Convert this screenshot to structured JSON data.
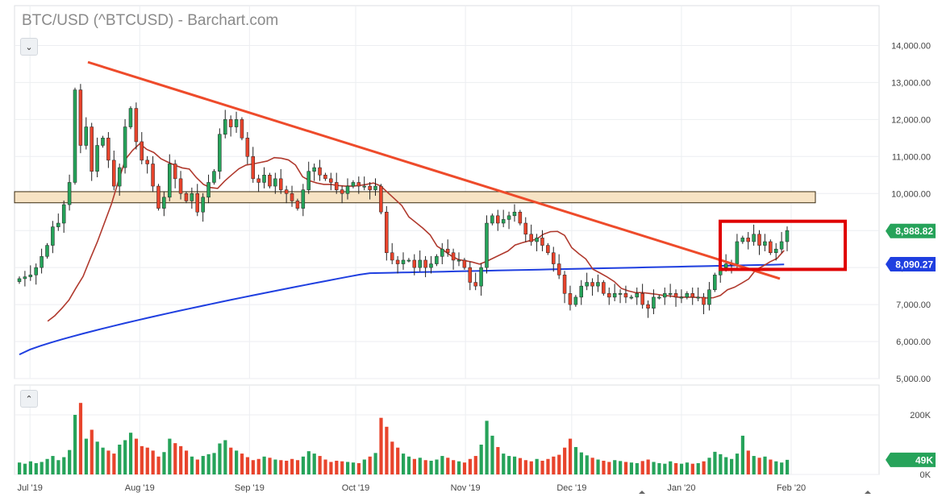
{
  "title": "BTC/USD (^BTCUSD) - Barchart.com",
  "controls": {
    "price_toggle_icon": "chevron-down-icon",
    "volume_toggle_icon": "chevron-up-icon"
  },
  "colors": {
    "up": "#26a35a",
    "down": "#e8442c",
    "ma_fast": "#b03a2e",
    "ma_slow": "#1f3fe0",
    "trendline": "#ee4b2b",
    "box": "#e00000",
    "zone_fill": "#f7e3c4",
    "tag_price": "#26a35a",
    "tag_slow": "#1f3fe0",
    "tag_vol": "#26a35a"
  },
  "chart_data": {
    "type": "candlestick",
    "price_axis": {
      "ticks": [
        "5,000.00",
        "6,000.00",
        "7,000.00",
        "8,000.00",
        "9,000.00",
        "10,000.00",
        "11,000.00",
        "12,000.00",
        "13,000.00",
        "14,000.00"
      ],
      "range": [
        5000,
        14400
      ]
    },
    "volume_axis": {
      "ticks": [
        "0K",
        "200K"
      ],
      "range": [
        0,
        300000
      ]
    },
    "x_axis": {
      "labels": [
        "Jul '19",
        "Aug '19",
        "Sep '19",
        "Oct '19",
        "Nov '19",
        "Dec '19",
        "Jan '20",
        "Feb '20"
      ],
      "label_index": [
        3,
        34,
        65,
        95,
        126,
        156,
        187,
        218
      ]
    },
    "last_price": "8,988.82",
    "last_ma_slow": "8,090.27",
    "last_volume": "49K",
    "closes": [
      7700,
      7750,
      7800,
      8000,
      8300,
      8600,
      9100,
      9200,
      9700,
      10300,
      12800,
      11300,
      11800,
      10600,
      11300,
      11500,
      10900,
      10200,
      10700,
      11800,
      12300,
      11400,
      10900,
      10800,
      10200,
      9600,
      9900,
      10800,
      10400,
      10000,
      9800,
      10000,
      9500,
      9900,
      10300,
      10600,
      11600,
      12000,
      11800,
      12000,
      11500,
      11000,
      10400,
      10300,
      10500,
      10200,
      10400,
      10100,
      10000,
      9800,
      9600,
      10100,
      10600,
      10700,
      10500,
      10400,
      10300,
      10100,
      10000,
      10200,
      10300,
      10200,
      10200,
      10100,
      10200,
      9500,
      8400,
      8200,
      8100,
      8200,
      8200,
      8000,
      8200,
      8000,
      8100,
      8300,
      8500,
      8400,
      8200,
      8200,
      8000,
      7600,
      7500,
      8000,
      9200,
      9400,
      9200,
      9300,
      9400,
      9500,
      9200,
      8900,
      8700,
      8800,
      8600,
      8400,
      8100,
      7800,
      7300,
      7000,
      7200,
      7500,
      7600,
      7500,
      7600,
      7300,
      7200,
      7300,
      7300,
      7200,
      7200,
      7300,
      7000,
      6900,
      7200,
      7200,
      7300,
      7300,
      7200,
      7200,
      7300,
      7200,
      7200,
      7000,
      7400,
      7800,
      8000,
      8100,
      8100,
      8700,
      8800,
      8700,
      8900,
      8600,
      8700,
      8400,
      8500,
      8700,
      9000
    ],
    "ma_fast": {
      "name": "",
      "start": [
        8,
        6550
      ],
      "end": [
        216,
        8000
      ]
    },
    "ma_slow": {
      "name": "",
      "start": [
        0,
        5650
      ],
      "end": [
        218,
        8090
      ]
    },
    "volume": [
      40000,
      36000,
      44000,
      38000,
      42000,
      52000,
      62000,
      48000,
      58000,
      82000,
      200000,
      240000,
      120000,
      150000,
      110000,
      90000,
      80000,
      70000,
      100000,
      115000,
      140000,
      120000,
      95000,
      90000,
      80000,
      60000,
      75000,
      120000,
      105000,
      95000,
      80000,
      60000,
      50000,
      62000,
      68000,
      72000,
      104000,
      115000,
      90000,
      80000,
      70000,
      58000,
      48000,
      52000,
      60000,
      56000,
      50000,
      48000,
      46000,
      52000,
      48000,
      60000,
      78000,
      70000,
      62000,
      50000,
      42000,
      46000,
      44000,
      42000,
      40000,
      38000,
      50000,
      60000,
      72000,
      190000,
      160000,
      110000,
      90000,
      70000,
      60000,
      52000,
      56000,
      48000,
      46000,
      50000,
      62000,
      56000,
      48000,
      44000,
      40000,
      52000,
      62000,
      100000,
      180000,
      130000,
      92000,
      70000,
      62000,
      60000,
      55000,
      48000,
      44000,
      52000,
      46000,
      52000,
      60000,
      66000,
      90000,
      120000,
      92000,
      74000,
      64000,
      56000,
      50000,
      46000,
      42000,
      48000,
      45000,
      42000,
      40000,
      38000,
      45000,
      50000,
      42000,
      38000,
      36000,
      44000,
      38000,
      36000,
      40000,
      36000,
      38000,
      44000,
      56000,
      76000,
      68000,
      58000,
      52000,
      70000,
      130000,
      80000,
      62000,
      56000,
      60000,
      50000,
      44000,
      40000,
      49000
    ]
  }
}
